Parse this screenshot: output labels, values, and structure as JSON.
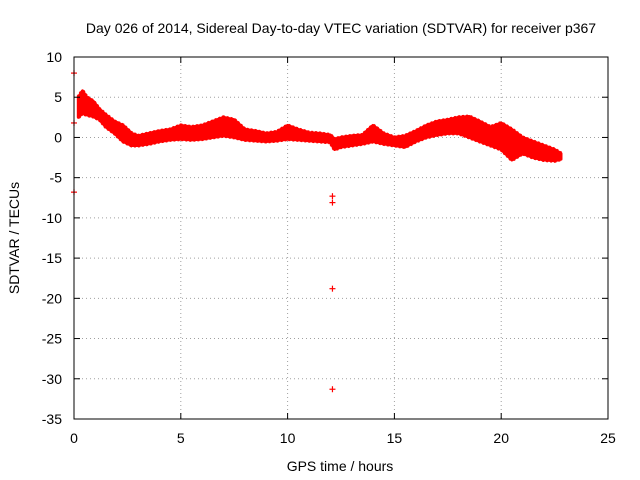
{
  "chart_data": {
    "type": "scatter",
    "title": "Day 026 of 2014, Sidereal Day-to-day VTEC variation (SDTVAR) for receiver p367",
    "xlabel": "GPS time / hours",
    "ylabel": "SDTVAR / TECUs",
    "xlim": [
      0,
      25
    ],
    "ylim": [
      -35,
      10
    ],
    "xticks": [
      0,
      5,
      10,
      15,
      20,
      25
    ],
    "yticks": [
      -35,
      -30,
      -25,
      -20,
      -15,
      -10,
      -5,
      0,
      5,
      10
    ],
    "grid": true,
    "series_color": "#ff0000",
    "series": [
      {
        "name": "SDTVAR",
        "marker": "plus",
        "band": {
          "x": [
            0.2,
            0.4,
            0.6,
            0.9,
            1.2,
            1.5,
            1.9,
            2.3,
            2.7,
            3.0,
            3.5,
            4.0,
            4.5,
            5.0,
            5.5,
            6.0,
            6.5,
            7.0,
            7.5,
            8.0,
            8.5,
            9.0,
            9.5,
            10.0,
            10.5,
            11.0,
            11.5,
            12.0,
            12.2,
            12.5,
            13.0,
            13.5,
            14.0,
            14.5,
            15.0,
            15.5,
            16.0,
            16.5,
            17.0,
            17.5,
            18.0,
            18.5,
            19.0,
            19.5,
            20.0,
            20.5,
            21.0,
            21.5,
            22.0,
            22.5,
            22.8
          ],
          "upper": [
            5.0,
            5.8,
            5.0,
            4.5,
            3.5,
            2.8,
            2.0,
            1.5,
            0.5,
            0.2,
            0.5,
            0.8,
            1.0,
            1.5,
            1.3,
            1.5,
            2.0,
            2.5,
            2.2,
            1.0,
            0.8,
            0.5,
            0.7,
            1.5,
            1.0,
            0.6,
            0.5,
            0.3,
            -0.2,
            0.0,
            0.2,
            0.3,
            1.5,
            0.5,
            0.0,
            0.2,
            0.8,
            1.5,
            2.0,
            2.2,
            2.5,
            2.6,
            2.0,
            1.3,
            1.8,
            1.0,
            0.0,
            -0.5,
            -1.0,
            -1.5,
            -2.0
          ],
          "lower": [
            2.5,
            3.0,
            2.8,
            2.6,
            2.2,
            1.3,
            0.5,
            -0.5,
            -1.0,
            -1.0,
            -0.8,
            -0.5,
            -0.3,
            -0.2,
            -0.3,
            -0.2,
            0.0,
            0.2,
            0.0,
            -0.3,
            -0.4,
            -0.5,
            -0.4,
            -0.2,
            -0.3,
            -0.4,
            -0.5,
            -0.6,
            -1.5,
            -1.2,
            -1.0,
            -0.8,
            -0.5,
            -0.8,
            -1.0,
            -1.2,
            -0.5,
            0.0,
            0.3,
            0.5,
            0.5,
            0.0,
            -0.5,
            -1.0,
            -1.5,
            -2.8,
            -2.0,
            -2.5,
            -2.8,
            -2.9,
            -2.7
          ]
        },
        "points": [
          {
            "x": 0.0,
            "y": 8.0
          },
          {
            "x": 0.0,
            "y": 1.8
          },
          {
            "x": 0.0,
            "y": -6.8
          },
          {
            "x": 12.1,
            "y": -7.3
          },
          {
            "x": 12.1,
            "y": -8.1
          },
          {
            "x": 12.1,
            "y": -18.8
          },
          {
            "x": 12.1,
            "y": -31.3
          }
        ]
      }
    ]
  }
}
